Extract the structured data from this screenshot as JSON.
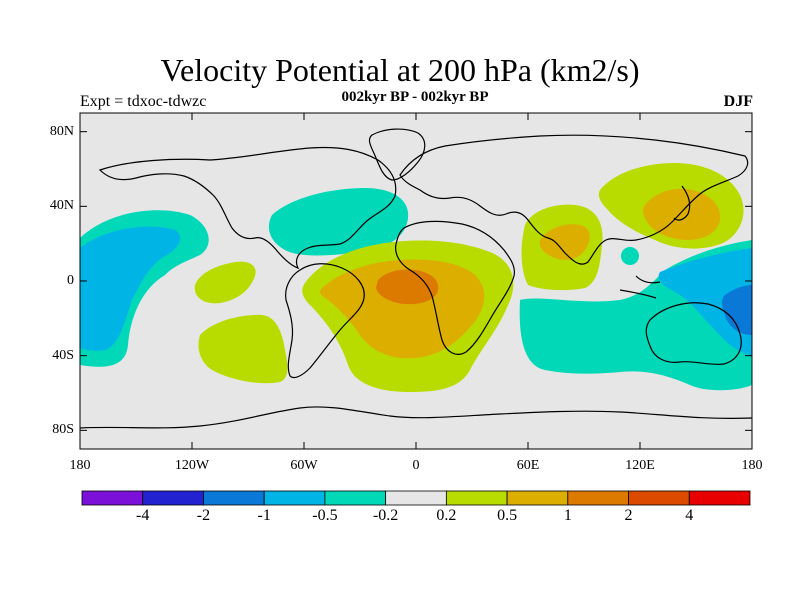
{
  "title": "Velocity Potential at 200 hPa (km2/s)",
  "subtitle": "002kyr BP - 002kyr BP",
  "experiment": "Expt = tdxoc-tdwzc",
  "season": "DJF",
  "map": {
    "background": "#e6e6e6",
    "lat_ticks": [
      "80N",
      "40N",
      "0",
      "40S",
      "80S"
    ],
    "lon_ticks": [
      "180",
      "120W",
      "60W",
      "0",
      "60E",
      "120E",
      "180"
    ]
  },
  "colorbar": {
    "colors": [
      "#7b10d8",
      "#2222d0",
      "#0a78d6",
      "#00b4e6",
      "#00d8b8",
      "#e6e6e6",
      "#b8dc00",
      "#dcae00",
      "#dc7a00",
      "#dc4a00",
      "#e80000"
    ],
    "labels": [
      "-4",
      "-2",
      "-1",
      "-0.5",
      "-0.2",
      "0.2",
      "0.5",
      "1",
      "2",
      "4"
    ]
  },
  "contour_colors": {
    "neg_weak": "#00d8b8",
    "neg_mid": "#00b4e6",
    "neg_strong": "#0a78d6",
    "pos_weak": "#b8dc00",
    "pos_mid": "#dcae00",
    "pos_strong": "#dc7a00",
    "coast": "#000000"
  }
}
